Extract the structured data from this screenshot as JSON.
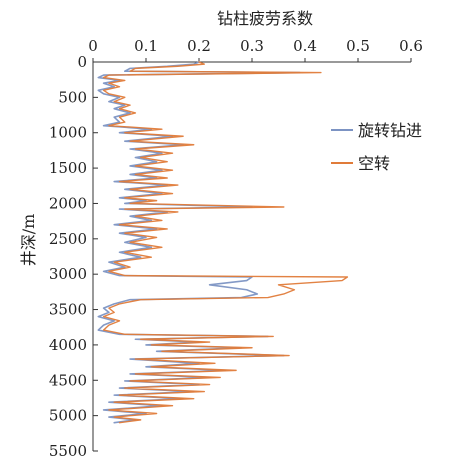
{
  "chart_data": {
    "type": "line",
    "title": "",
    "xlabel": "钻柱疲劳系数",
    "ylabel": "井深/m",
    "x_axis_position": "top",
    "y_axis_inverted": true,
    "xlim": [
      0,
      0.6
    ],
    "ylim": [
      0,
      5500
    ],
    "x_ticks": [
      "0",
      "0.1",
      "0.2",
      "0.3",
      "0.4",
      "0.5",
      "0.6"
    ],
    "y_ticks": [
      "0",
      "500",
      "1000",
      "1500",
      "2000",
      "2500",
      "3000",
      "3500",
      "4000",
      "4500",
      "5000",
      "5500"
    ],
    "grid": false,
    "legend_position": "right",
    "series": [
      {
        "name": "旋转钻进",
        "color": "#7C93C3",
        "points": [
          [
            0.2,
            0
          ],
          [
            0.19,
            30
          ],
          [
            0.14,
            60
          ],
          [
            0.07,
            90
          ],
          [
            0.06,
            130
          ],
          [
            0.39,
            150
          ],
          [
            0.02,
            185
          ],
          [
            0.01,
            220
          ],
          [
            0.05,
            260
          ],
          [
            0.02,
            300
          ],
          [
            0.04,
            350
          ],
          [
            0.01,
            400
          ],
          [
            0.02,
            450
          ],
          [
            0.05,
            500
          ],
          [
            0.03,
            560
          ],
          [
            0.06,
            610
          ],
          [
            0.04,
            660
          ],
          [
            0.07,
            720
          ],
          [
            0.04,
            780
          ],
          [
            0.05,
            850
          ],
          [
            0.02,
            900
          ],
          [
            0.11,
            950
          ],
          [
            0.05,
            1000
          ],
          [
            0.15,
            1050
          ],
          [
            0.06,
            1120
          ],
          [
            0.17,
            1170
          ],
          [
            0.07,
            1230
          ],
          [
            0.13,
            1290
          ],
          [
            0.08,
            1350
          ],
          [
            0.12,
            1410
          ],
          [
            0.07,
            1470
          ],
          [
            0.13,
            1530
          ],
          [
            0.07,
            1590
          ],
          [
            0.12,
            1640
          ],
          [
            0.04,
            1690
          ],
          [
            0.14,
            1740
          ],
          [
            0.06,
            1800
          ],
          [
            0.13,
            1860
          ],
          [
            0.05,
            1920
          ],
          [
            0.1,
            1960
          ],
          [
            0.06,
            2000
          ],
          [
            0.3,
            2050
          ],
          [
            0.05,
            2080
          ],
          [
            0.14,
            2120
          ],
          [
            0.07,
            2180
          ],
          [
            0.11,
            2240
          ],
          [
            0.04,
            2300
          ],
          [
            0.12,
            2360
          ],
          [
            0.05,
            2420
          ],
          [
            0.1,
            2480
          ],
          [
            0.06,
            2550
          ],
          [
            0.11,
            2620
          ],
          [
            0.05,
            2690
          ],
          [
            0.09,
            2760
          ],
          [
            0.03,
            2830
          ],
          [
            0.06,
            2900
          ],
          [
            0.02,
            2960
          ],
          [
            0.05,
            3020
          ],
          [
            0.3,
            3040
          ],
          [
            0.29,
            3090
          ],
          [
            0.22,
            3150
          ],
          [
            0.29,
            3220
          ],
          [
            0.31,
            3280
          ],
          [
            0.28,
            3330
          ],
          [
            0.07,
            3360
          ],
          [
            0.04,
            3420
          ],
          [
            0.02,
            3480
          ],
          [
            0.03,
            3540
          ],
          [
            0.01,
            3600
          ],
          [
            0.04,
            3660
          ],
          [
            0.02,
            3720
          ],
          [
            0.01,
            3790
          ],
          [
            0.05,
            3850
          ],
          [
            0.33,
            3880
          ],
          [
            0.08,
            3920
          ],
          [
            0.2,
            3960
          ],
          [
            0.1,
            4000
          ],
          [
            0.28,
            4040
          ],
          [
            0.12,
            4090
          ],
          [
            0.36,
            4150
          ],
          [
            0.07,
            4200
          ],
          [
            0.2,
            4260
          ],
          [
            0.1,
            4310
          ],
          [
            0.25,
            4360
          ],
          [
            0.07,
            4410
          ],
          [
            0.22,
            4460
          ],
          [
            0.06,
            4510
          ],
          [
            0.2,
            4560
          ],
          [
            0.05,
            4610
          ],
          [
            0.19,
            4660
          ],
          [
            0.04,
            4710
          ],
          [
            0.17,
            4760
          ],
          [
            0.03,
            4810
          ],
          [
            0.13,
            4860
          ],
          [
            0.02,
            4920
          ],
          [
            0.1,
            4970
          ],
          [
            0.03,
            5020
          ],
          [
            0.08,
            5060
          ],
          [
            0.04,
            5100
          ]
        ]
      },
      {
        "name": "空转",
        "color": "#E07B39",
        "points": [
          [
            0.2,
            0
          ],
          [
            0.21,
            30
          ],
          [
            0.16,
            60
          ],
          [
            0.08,
            90
          ],
          [
            0.07,
            130
          ],
          [
            0.43,
            150
          ],
          [
            0.03,
            185
          ],
          [
            0.02,
            220
          ],
          [
            0.06,
            260
          ],
          [
            0.03,
            300
          ],
          [
            0.05,
            350
          ],
          [
            0.02,
            400
          ],
          [
            0.03,
            450
          ],
          [
            0.06,
            500
          ],
          [
            0.04,
            560
          ],
          [
            0.07,
            610
          ],
          [
            0.05,
            660
          ],
          [
            0.08,
            720
          ],
          [
            0.05,
            780
          ],
          [
            0.06,
            850
          ],
          [
            0.03,
            900
          ],
          [
            0.13,
            950
          ],
          [
            0.06,
            1000
          ],
          [
            0.17,
            1050
          ],
          [
            0.07,
            1120
          ],
          [
            0.19,
            1170
          ],
          [
            0.08,
            1230
          ],
          [
            0.15,
            1290
          ],
          [
            0.09,
            1350
          ],
          [
            0.14,
            1410
          ],
          [
            0.08,
            1470
          ],
          [
            0.15,
            1530
          ],
          [
            0.08,
            1590
          ],
          [
            0.14,
            1640
          ],
          [
            0.05,
            1690
          ],
          [
            0.16,
            1740
          ],
          [
            0.07,
            1800
          ],
          [
            0.15,
            1860
          ],
          [
            0.06,
            1920
          ],
          [
            0.12,
            1960
          ],
          [
            0.07,
            2000
          ],
          [
            0.36,
            2050
          ],
          [
            0.06,
            2080
          ],
          [
            0.16,
            2120
          ],
          [
            0.08,
            2180
          ],
          [
            0.13,
            2240
          ],
          [
            0.05,
            2300
          ],
          [
            0.14,
            2360
          ],
          [
            0.06,
            2420
          ],
          [
            0.12,
            2480
          ],
          [
            0.07,
            2550
          ],
          [
            0.13,
            2620
          ],
          [
            0.06,
            2690
          ],
          [
            0.11,
            2760
          ],
          [
            0.04,
            2830
          ],
          [
            0.07,
            2900
          ],
          [
            0.03,
            2960
          ],
          [
            0.06,
            3020
          ],
          [
            0.48,
            3040
          ],
          [
            0.47,
            3090
          ],
          [
            0.35,
            3150
          ],
          [
            0.38,
            3220
          ],
          [
            0.36,
            3280
          ],
          [
            0.33,
            3330
          ],
          [
            0.09,
            3360
          ],
          [
            0.05,
            3420
          ],
          [
            0.03,
            3480
          ],
          [
            0.04,
            3540
          ],
          [
            0.02,
            3600
          ],
          [
            0.05,
            3660
          ],
          [
            0.03,
            3720
          ],
          [
            0.02,
            3790
          ],
          [
            0.06,
            3850
          ],
          [
            0.34,
            3880
          ],
          [
            0.09,
            3920
          ],
          [
            0.22,
            3960
          ],
          [
            0.11,
            4000
          ],
          [
            0.3,
            4040
          ],
          [
            0.13,
            4090
          ],
          [
            0.37,
            4150
          ],
          [
            0.08,
            4200
          ],
          [
            0.23,
            4260
          ],
          [
            0.11,
            4310
          ],
          [
            0.27,
            4360
          ],
          [
            0.08,
            4410
          ],
          [
            0.24,
            4460
          ],
          [
            0.07,
            4510
          ],
          [
            0.22,
            4560
          ],
          [
            0.06,
            4610
          ],
          [
            0.21,
            4660
          ],
          [
            0.05,
            4710
          ],
          [
            0.19,
            4760
          ],
          [
            0.04,
            4810
          ],
          [
            0.15,
            4860
          ],
          [
            0.03,
            4920
          ],
          [
            0.12,
            4970
          ],
          [
            0.04,
            5020
          ],
          [
            0.09,
            5060
          ],
          [
            0.05,
            5100
          ]
        ]
      }
    ]
  }
}
